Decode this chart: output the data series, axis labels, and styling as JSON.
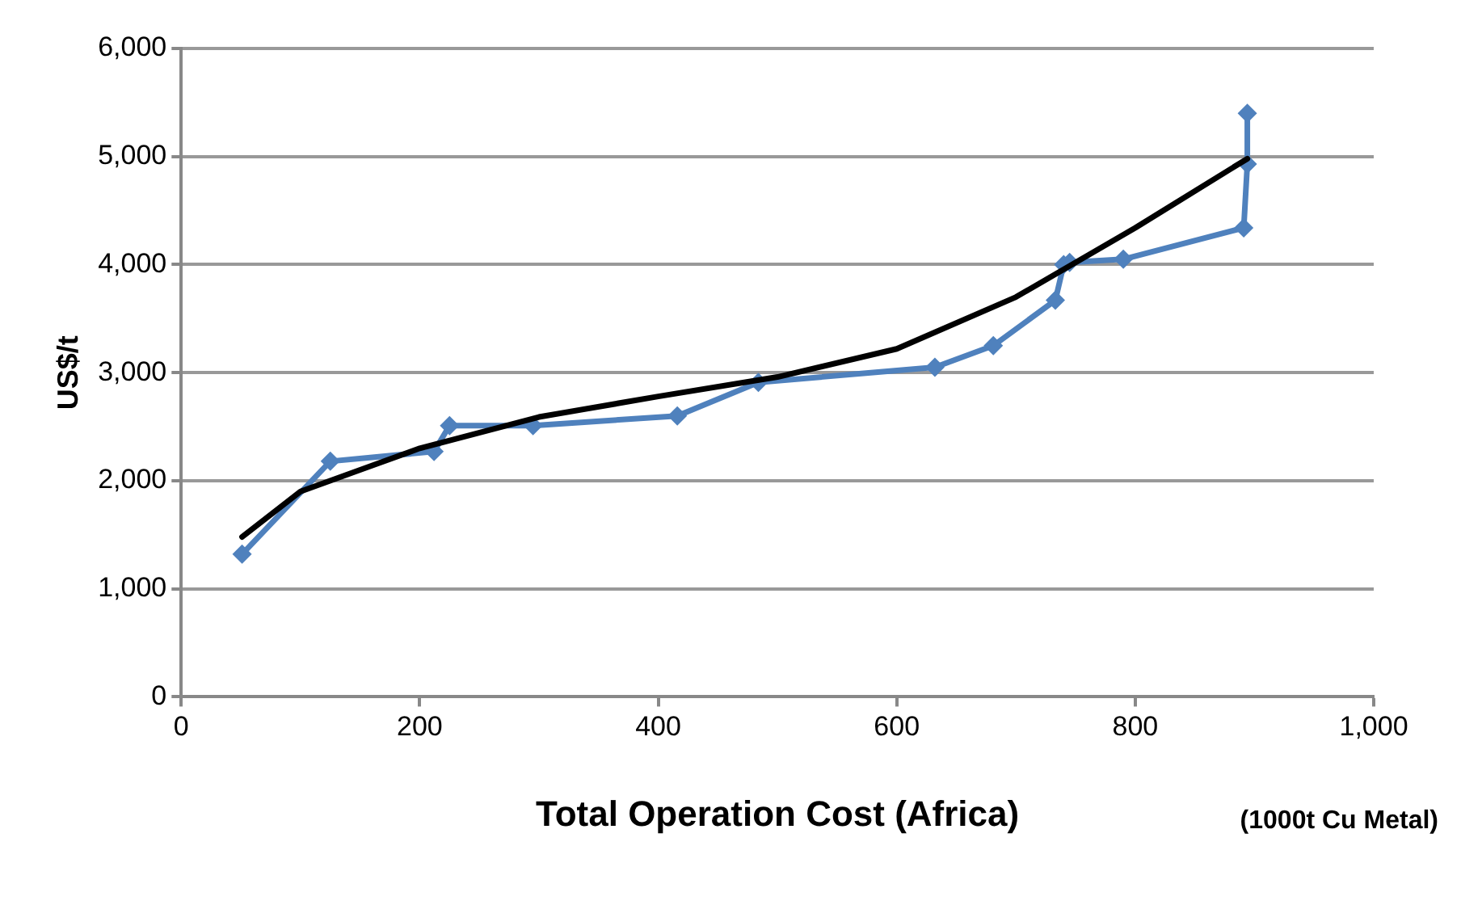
{
  "chart_data": {
    "type": "line",
    "xlabel": "Total Operation Cost (Africa)",
    "ylabel": "US$/t",
    "annotations": [
      "(1000t Cu Metal)"
    ],
    "xlim": [
      0,
      1000
    ],
    "xticks": [
      {
        "value": 0,
        "label": "0"
      },
      {
        "value": 200,
        "label": "200"
      },
      {
        "value": 400,
        "label": "400"
      },
      {
        "value": 600,
        "label": "600"
      },
      {
        "value": 800,
        "label": "800"
      },
      {
        "value": 1000,
        "label": "1,000"
      }
    ],
    "ylim": [
      0,
      6000
    ],
    "yticks": [
      {
        "value": 0,
        "label": "0"
      },
      {
        "value": 1000,
        "label": "1,000"
      },
      {
        "value": 2000,
        "label": "2,000"
      },
      {
        "value": 3000,
        "label": "3,000"
      },
      {
        "value": 4000,
        "label": "4,000"
      },
      {
        "value": 5000,
        "label": "5,000"
      },
      {
        "value": 6000,
        "label": "6,000"
      }
    ],
    "grid": "y",
    "legend": false,
    "marker": "diamond",
    "line_style": "solid",
    "series": [
      {
        "color": "#4f81bd",
        "x": [
          51,
          125,
          212,
          225,
          295,
          416,
          484,
          632,
          681,
          733,
          740,
          745,
          790,
          891,
          894,
          894
        ],
        "values": [
          1320,
          2180,
          2270,
          2510,
          2510,
          2600,
          2910,
          3050,
          3250,
          3670,
          4000,
          4020,
          4050,
          4340,
          4930,
          5400
        ]
      },
      {
        "color": "#000000",
        "marker": "none",
        "x": [
          51,
          100,
          150,
          200,
          300,
          400,
          500,
          600,
          700,
          800,
          894
        ],
        "values": [
          1480,
          1900,
          2100,
          2300,
          2590,
          2780,
          2960,
          3220,
          3700,
          4340,
          4980
        ]
      }
    ]
  }
}
